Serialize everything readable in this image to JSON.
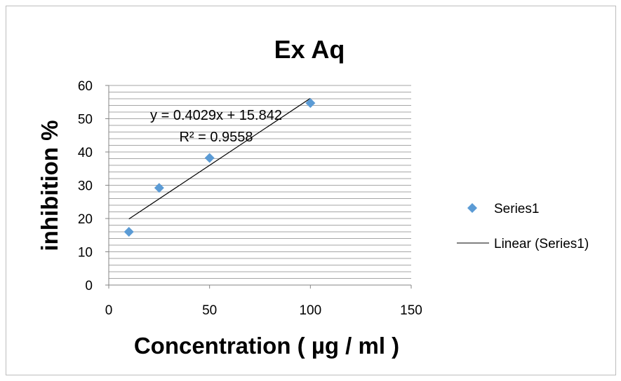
{
  "chart_data": {
    "type": "scatter",
    "title": "Ex Aq",
    "xlabel": "Concentration ( µg / ml )",
    "ylabel": "inhibition %",
    "xlim": [
      0,
      150
    ],
    "ylim": [
      0,
      60
    ],
    "x_ticks": [
      "0",
      "50",
      "100",
      "150"
    ],
    "y_ticks": [
      "0",
      "10",
      "20",
      "30",
      "40",
      "50",
      "60"
    ],
    "grid": true,
    "legend_position": "right",
    "series": [
      {
        "name": "Series1",
        "x": [
          10,
          25,
          50,
          100
        ],
        "y": [
          16,
          29.2,
          38.2,
          54.7
        ],
        "color": "#5B9BD5",
        "marker": "diamond"
      }
    ],
    "trendline": {
      "name": "Linear (Series1)",
      "slope": 0.4029,
      "intercept": 15.842,
      "x_range": [
        10,
        100
      ],
      "color": "#000000",
      "equation_label": "y = 0.4029x + 15.842",
      "r2_label": "R² = 0.9558"
    }
  }
}
